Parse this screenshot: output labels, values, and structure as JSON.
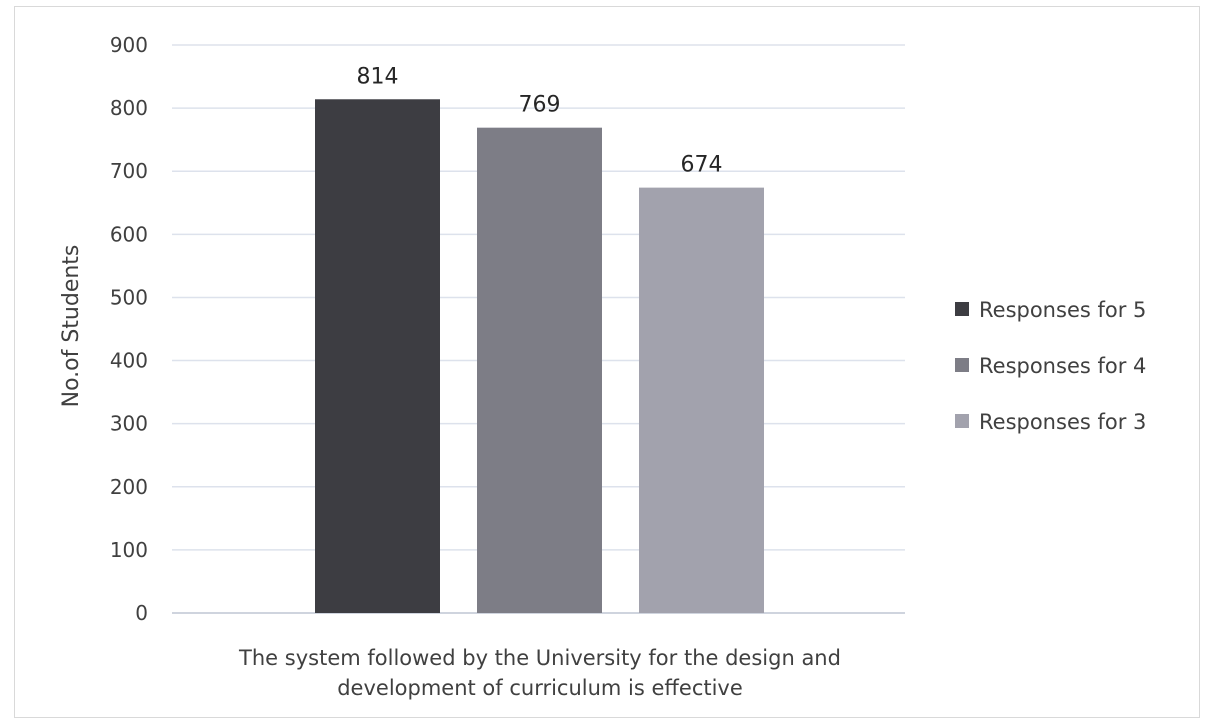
{
  "chart_data": {
    "type": "bar",
    "title": "",
    "categories": [
      "The system followed by the University for the design and development of curriculum is effective"
    ],
    "category_label_lines": [
      "The system followed by the University for the design and",
      "development of curriculum is effective"
    ],
    "series": [
      {
        "name": "Responses for 5",
        "values": [
          814
        ],
        "color": "#3d3d42"
      },
      {
        "name": "Responses for 4",
        "values": [
          769
        ],
        "color": "#7d7d86"
      },
      {
        "name": "Responses for 3",
        "values": [
          674
        ],
        "color": "#a2a2ad"
      }
    ],
    "data_labels": [
      "814",
      "769",
      "674"
    ],
    "xlabel": "",
    "ylabel": "No.of Students",
    "ylim": [
      0,
      900
    ],
    "yticks": [
      0,
      100,
      200,
      300,
      400,
      500,
      600,
      700,
      800,
      900
    ],
    "grid": true,
    "legend_position": "right"
  }
}
